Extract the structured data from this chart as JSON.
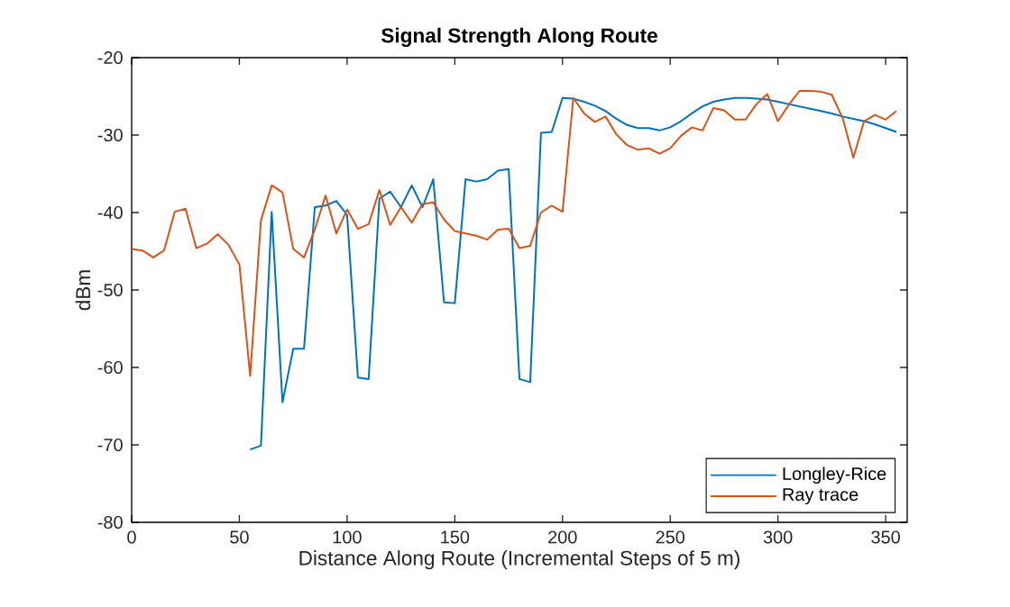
{
  "chart_data": {
    "type": "line",
    "title": "Signal Strength Along Route",
    "xlabel": "Distance Along Route (Incremental Steps of 5 m)",
    "ylabel": "dBm",
    "x": [
      0,
      5,
      10,
      15,
      20,
      25,
      30,
      35,
      40,
      45,
      50,
      55,
      60,
      65,
      70,
      75,
      80,
      85,
      90,
      95,
      100,
      105,
      110,
      115,
      120,
      125,
      130,
      135,
      140,
      145,
      150,
      155,
      160,
      165,
      170,
      175,
      180,
      185,
      190,
      195,
      200,
      205,
      210,
      215,
      220,
      225,
      230,
      235,
      240,
      245,
      250,
      255,
      260,
      265,
      270,
      275,
      280,
      285,
      290,
      295,
      300,
      305,
      310,
      315,
      320,
      325,
      330,
      335,
      340,
      345,
      350,
      355
    ],
    "series": [
      {
        "name": "Longley-Rice",
        "color": "#0072bd",
        "values": [
          null,
          null,
          null,
          null,
          null,
          null,
          null,
          null,
          null,
          null,
          null,
          -70.6,
          -70.1,
          -39.9,
          -64.5,
          -57.6,
          -57.6,
          -39.3,
          -39.1,
          -38.5,
          -40.3,
          -61.3,
          -61.5,
          -38.2,
          -37.3,
          -39.3,
          -36.5,
          -39.3,
          -35.7,
          -51.6,
          -51.7,
          -35.7,
          -36.0,
          -35.7,
          -34.6,
          -34.4,
          -61.5,
          -61.9,
          -29.7,
          -29.6,
          -25.2,
          -25.3,
          -25.7,
          -26.2,
          -26.9,
          -27.9,
          -28.7,
          -29.1,
          -29.1,
          -29.4,
          -29.0,
          -28.2,
          -27.2,
          -26.3,
          -25.7,
          -25.4,
          -25.2,
          -25.2,
          -25.3,
          -25.4,
          -25.7,
          -26.0,
          -26.3,
          -26.6,
          -26.9,
          -27.2,
          -27.6,
          -27.9,
          -28.2,
          -28.6,
          -29.1,
          -29.6
        ]
      },
      {
        "name": "Ray trace",
        "color": "#d95319",
        "values": [
          -44.7,
          -44.9,
          -45.8,
          -44.9,
          -39.9,
          -39.5,
          -44.6,
          -44.0,
          -42.8,
          -44.2,
          -46.7,
          -61.1,
          -41.0,
          -36.5,
          -37.4,
          -44.7,
          -45.8,
          -42.2,
          -37.8,
          -42.7,
          -39.6,
          -42.1,
          -41.5,
          -37.1,
          -41.6,
          -39.3,
          -41.3,
          -38.9,
          -38.7,
          -40.9,
          -42.4,
          -42.7,
          -43.0,
          -43.5,
          -42.2,
          -42.1,
          -44.6,
          -44.3,
          -40.0,
          -39.1,
          -39.9,
          -25.2,
          -27.2,
          -28.3,
          -27.6,
          -29.9,
          -31.3,
          -31.9,
          -31.7,
          -32.4,
          -31.7,
          -30.1,
          -29.0,
          -29.4,
          -26.5,
          -26.8,
          -28.0,
          -28.0,
          -26.0,
          -24.7,
          -28.2,
          -26.1,
          -24.3,
          -24.3,
          -24.4,
          -24.8,
          -27.8,
          -32.9,
          -28.2,
          -27.4,
          -28.0,
          -26.9
        ]
      }
    ],
    "xlim": [
      0,
      360
    ],
    "ylim": [
      -80,
      -20
    ],
    "xticks": [
      0,
      50,
      100,
      150,
      200,
      250,
      300,
      350
    ],
    "yticks": [
      -80,
      -70,
      -60,
      -50,
      -40,
      -30,
      -20
    ],
    "grid": false,
    "legend": "bottom right",
    "marker": "none",
    "line_style": "solid"
  }
}
